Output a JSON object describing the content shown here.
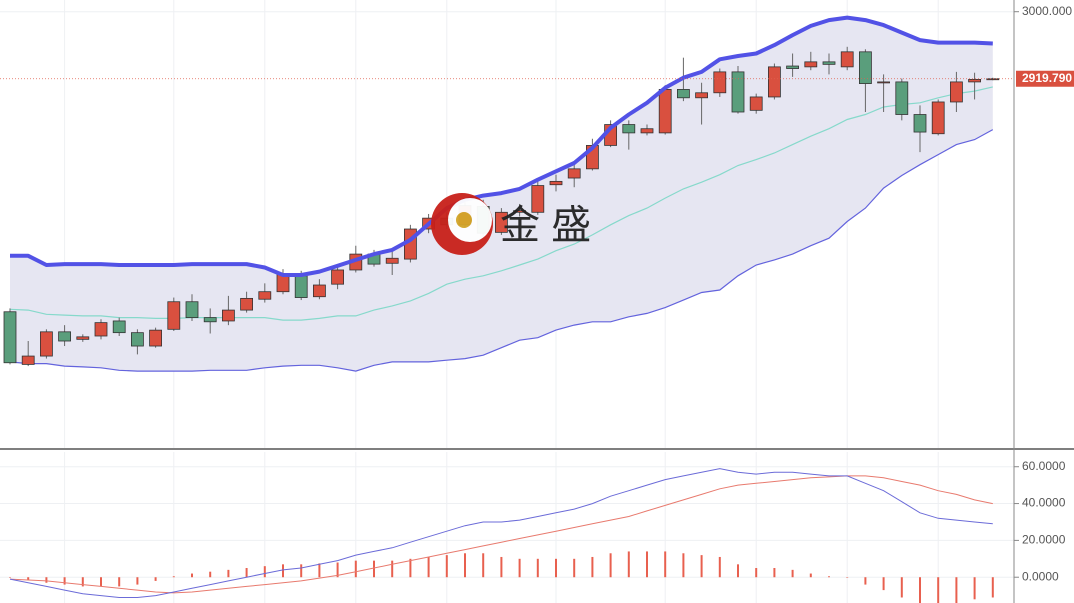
{
  "chart_data": [
    {
      "type": "candlestick",
      "watermark": "金 盛",
      "open": [
        2641,
        2578,
        2588,
        2617,
        2608,
        2612,
        2630,
        2616,
        2600,
        2620,
        2653,
        2634,
        2630,
        2643,
        2656,
        2665,
        2684,
        2659,
        2674,
        2691,
        2710,
        2699,
        2704,
        2740,
        2753,
        2745,
        2767,
        2736,
        2760,
        2760,
        2793,
        2801,
        2812,
        2840,
        2865,
        2855,
        2855,
        2907,
        2897,
        2903,
        2928,
        2882,
        2898,
        2935,
        2934,
        2940,
        2934,
        2952,
        2915,
        2916,
        2877,
        2854,
        2892,
        2916,
        2919
      ],
      "high": [
        2645,
        2606,
        2620,
        2625,
        2614,
        2632,
        2634,
        2620,
        2622,
        2658,
        2662,
        2645,
        2660,
        2665,
        2675,
        2692,
        2690,
        2680,
        2697,
        2720,
        2715,
        2715,
        2745,
        2758,
        2760,
        2772,
        2775,
        2765,
        2770,
        2800,
        2805,
        2820,
        2848,
        2870,
        2870,
        2865,
        2912,
        2945,
        2915,
        2932,
        2935,
        2902,
        2938,
        2950,
        2952,
        2950,
        2958,
        2955,
        2925,
        2920,
        2888,
        2895,
        2928,
        2927,
        2921
      ],
      "low": [
        2578,
        2576,
        2585,
        2600,
        2605,
        2608,
        2612,
        2590,
        2598,
        2618,
        2630,
        2615,
        2625,
        2640,
        2652,
        2662,
        2655,
        2656,
        2668,
        2688,
        2695,
        2685,
        2700,
        2735,
        2740,
        2742,
        2730,
        2733,
        2755,
        2757,
        2785,
        2790,
        2810,
        2838,
        2835,
        2852,
        2853,
        2893,
        2865,
        2898,
        2878,
        2878,
        2895,
        2922,
        2930,
        2925,
        2930,
        2880,
        2880,
        2870,
        2832,
        2852,
        2880,
        2895,
        2918
      ],
      "close": [
        2580,
        2588,
        2617,
        2606,
        2611,
        2628,
        2616,
        2600,
        2619,
        2653,
        2634,
        2629,
        2643,
        2657,
        2665,
        2686,
        2658,
        2673,
        2691,
        2710,
        2698,
        2705,
        2740,
        2753,
        2745,
        2768,
        2735,
        2760,
        2762,
        2792,
        2797,
        2812,
        2840,
        2865,
        2855,
        2860,
        2907,
        2897,
        2903,
        2928,
        2880,
        2898,
        2934,
        2932,
        2940,
        2937,
        2952,
        2914,
        2916,
        2877,
        2856,
        2892,
        2916,
        2919,
        2919.79
      ],
      "upper": [
        2708,
        2708,
        2697,
        2698,
        2698,
        2698,
        2697,
        2697,
        2697,
        2697,
        2698,
        2698,
        2698,
        2698,
        2694,
        2685,
        2685,
        2689,
        2696,
        2703,
        2710,
        2715,
        2727,
        2746,
        2765,
        2775,
        2780,
        2783,
        2788,
        2799,
        2809,
        2819,
        2837,
        2861,
        2877,
        2891,
        2909,
        2921,
        2928,
        2943,
        2947,
        2950,
        2960,
        2972,
        2983,
        2990,
        2993,
        2990,
        2984,
        2975,
        2966,
        2963,
        2963,
        2963,
        2962
      ],
      "middle": [
        2644,
        2643,
        2638,
        2637,
        2636,
        2636,
        2634,
        2634,
        2633,
        2633,
        2634,
        2634,
        2634,
        2634,
        2634,
        2631,
        2631,
        2633,
        2636,
        2636,
        2643,
        2648,
        2654,
        2663,
        2674,
        2680,
        2684,
        2690,
        2697,
        2704,
        2714,
        2722,
        2733,
        2745,
        2756,
        2765,
        2777,
        2788,
        2796,
        2805,
        2816,
        2823,
        2831,
        2841,
        2851,
        2860,
        2871,
        2877,
        2886,
        2889,
        2891,
        2897,
        2902,
        2905,
        2910
      ],
      "lower": [
        2581,
        2579,
        2579,
        2576,
        2575,
        2574,
        2571,
        2570,
        2570,
        2570,
        2570,
        2571,
        2571,
        2571,
        2574,
        2576,
        2577,
        2577,
        2574,
        2570,
        2577,
        2581,
        2581,
        2581,
        2583,
        2585,
        2589,
        2598,
        2607,
        2610,
        2619,
        2625,
        2629,
        2629,
        2635,
        2639,
        2646,
        2655,
        2664,
        2667,
        2684,
        2697,
        2703,
        2710,
        2720,
        2729,
        2749,
        2765,
        2789,
        2804,
        2817,
        2829,
        2841,
        2847,
        2859
      ],
      "up_color": "#d9503f",
      "down_color": "#5a9e7c",
      "band_colors": {
        "upper": "#5252e6",
        "middle": "#86d9cb",
        "lower": "#6363dd",
        "fill": "#e6e6f2"
      },
      "ylim": [
        2478,
        3014
      ],
      "yticks": [
        {
          "value": 3000,
          "label": "3000.000"
        }
      ],
      "last_price": {
        "value": 2919.79,
        "label": "2919.790"
      }
    },
    {
      "type": "macd",
      "dif": [
        -1,
        -3,
        -5,
        -7,
        -9,
        -10,
        -11,
        -11,
        -10,
        -8,
        -6,
        -4,
        -2,
        0,
        2,
        4,
        5,
        7,
        9,
        12,
        14,
        16,
        19,
        22,
        25,
        28,
        30,
        30,
        31,
        33,
        35,
        37,
        40,
        44,
        47,
        50,
        53,
        55,
        57,
        59,
        57,
        56,
        57,
        57,
        56,
        55,
        55,
        51,
        47,
        41,
        35,
        32,
        31,
        30,
        29
      ],
      "dea": [
        -1,
        -1.5,
        -2,
        -3,
        -4,
        -5,
        -6,
        -7,
        -8,
        -8.5,
        -8,
        -7,
        -6,
        -5,
        -4,
        -3,
        -2,
        -0.5,
        1,
        3,
        5,
        7,
        9,
        11,
        13,
        15,
        17,
        19,
        21,
        23,
        25,
        27,
        29,
        31,
        33,
        36,
        39,
        42,
        45,
        48,
        50,
        51,
        52,
        53,
        54,
        54.5,
        55,
        55,
        54,
        52,
        50,
        47,
        45,
        42,
        40
      ],
      "histogram": [
        0,
        -1.5,
        -3,
        -4,
        -5,
        -5,
        -5,
        -4,
        -2,
        0.5,
        2,
        3,
        4,
        5,
        6,
        7,
        7,
        7.5,
        8,
        9,
        9,
        9,
        10,
        11,
        12,
        13,
        13,
        11,
        10,
        10,
        10,
        10,
        11,
        13,
        14,
        14,
        14,
        13,
        12,
        11,
        7,
        5,
        5,
        4,
        2,
        0.5,
        0,
        -4,
        -7,
        -11,
        -15,
        -15,
        -14,
        -12,
        -11
      ],
      "colors": {
        "dif": "#6b6bd8",
        "dea": "#e87a6e",
        "histogram": "#e8604f"
      },
      "ylim": [
        -14,
        68
      ],
      "yticks": [
        {
          "value": 0,
          "label": "0.0000"
        },
        {
          "value": 20,
          "label": "20.0000"
        },
        {
          "value": 40,
          "label": "40.0000"
        },
        {
          "value": 60,
          "label": "60.0000"
        }
      ]
    }
  ]
}
